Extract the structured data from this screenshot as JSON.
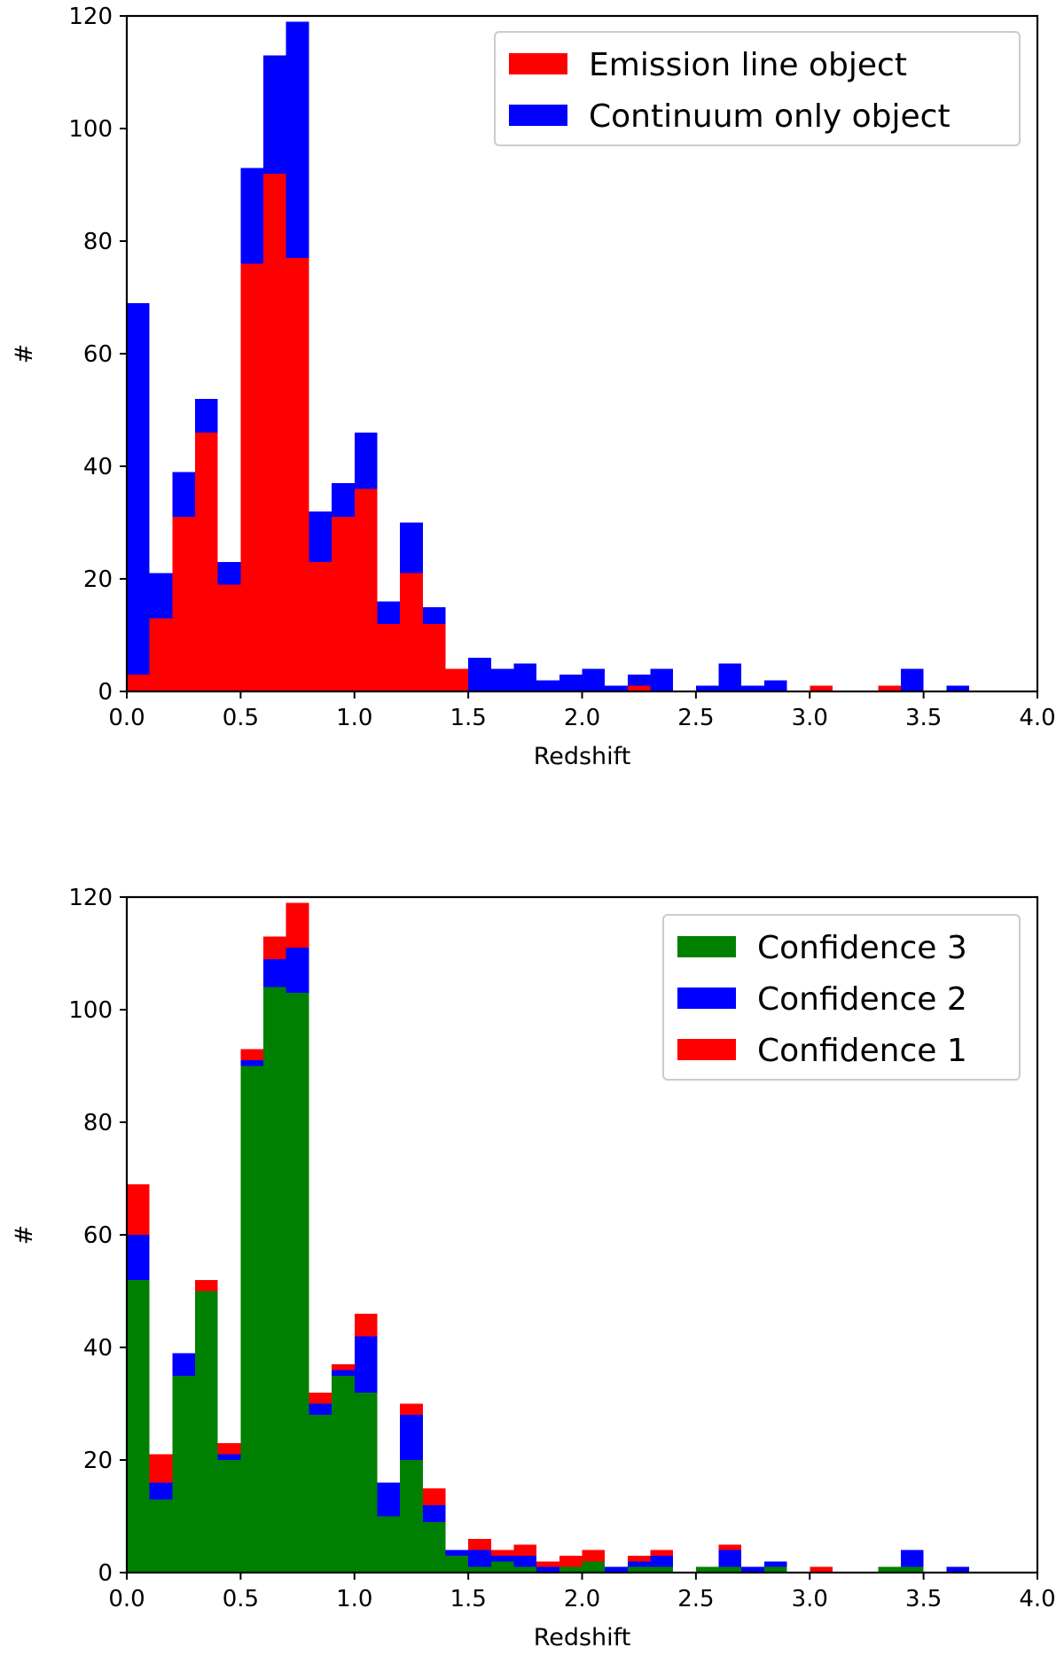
{
  "chart_data": [
    {
      "type": "bar",
      "stacked": true,
      "title": "",
      "xlabel": "Redshift",
      "ylabel": "#",
      "xlim": [
        0.0,
        4.0
      ],
      "ylim": [
        0,
        120
      ],
      "grid": false,
      "legend_position": "top-right",
      "bin_width": 0.1,
      "bin_starts": [
        0.0,
        0.1,
        0.2,
        0.3,
        0.4,
        0.5,
        0.6,
        0.7,
        0.8,
        0.9,
        1.0,
        1.1,
        1.2,
        1.3,
        1.4,
        1.5,
        1.6,
        1.7,
        1.8,
        1.9,
        2.0,
        2.1,
        2.2,
        2.3,
        2.4,
        2.5,
        2.6,
        2.7,
        2.8,
        2.9,
        3.0,
        3.1,
        3.2,
        3.3,
        3.4,
        3.5,
        3.6,
        3.7,
        3.8,
        3.9
      ],
      "x_ticks": [
        "0.0",
        "0.5",
        "1.0",
        "1.5",
        "2.0",
        "2.5",
        "3.0",
        "3.5",
        "4.0"
      ],
      "y_ticks": [
        "0",
        "20",
        "40",
        "60",
        "80",
        "100",
        "120"
      ],
      "series": [
        {
          "name": "Emission line object",
          "color": "#ff0000",
          "values": [
            3,
            13,
            31,
            46,
            19,
            76,
            92,
            77,
            23,
            31,
            36,
            12,
            21,
            12,
            4,
            0,
            0,
            0,
            0,
            0,
            0,
            0,
            1,
            0,
            0,
            0,
            0,
            0,
            0,
            0,
            1,
            0,
            0,
            1,
            0,
            0,
            0,
            0,
            0,
            0
          ]
        },
        {
          "name": "Continuum only object",
          "color": "#0000ff",
          "values": [
            66,
            8,
            8,
            6,
            4,
            17,
            21,
            42,
            9,
            6,
            10,
            4,
            9,
            3,
            0,
            6,
            4,
            5,
            2,
            3,
            4,
            1,
            2,
            4,
            0,
            1,
            5,
            1,
            2,
            0,
            0,
            0,
            0,
            0,
            4,
            0,
            1,
            0,
            0,
            0
          ]
        }
      ]
    },
    {
      "type": "bar",
      "stacked": true,
      "title": "",
      "xlabel": "Redshift",
      "ylabel": "#",
      "xlim": [
        0.0,
        4.0
      ],
      "ylim": [
        0,
        120
      ],
      "grid": false,
      "legend_position": "top-right",
      "bin_width": 0.1,
      "bin_starts": [
        0.0,
        0.1,
        0.2,
        0.3,
        0.4,
        0.5,
        0.6,
        0.7,
        0.8,
        0.9,
        1.0,
        1.1,
        1.2,
        1.3,
        1.4,
        1.5,
        1.6,
        1.7,
        1.8,
        1.9,
        2.0,
        2.1,
        2.2,
        2.3,
        2.4,
        2.5,
        2.6,
        2.7,
        2.8,
        2.9,
        3.0,
        3.1,
        3.2,
        3.3,
        3.4,
        3.5,
        3.6,
        3.7,
        3.8,
        3.9
      ],
      "x_ticks": [
        "0.0",
        "0.5",
        "1.0",
        "1.5",
        "2.0",
        "2.5",
        "3.0",
        "3.5",
        "4.0"
      ],
      "y_ticks": [
        "0",
        "20",
        "40",
        "60",
        "80",
        "100",
        "120"
      ],
      "series": [
        {
          "name": "Confidence 3",
          "color": "#008000",
          "values": [
            52,
            13,
            35,
            50,
            20,
            90,
            104,
            103,
            28,
            35,
            32,
            10,
            20,
            9,
            3,
            1,
            2,
            1,
            0,
            1,
            2,
            0,
            1,
            1,
            0,
            1,
            1,
            0,
            1,
            0,
            0,
            0,
            0,
            1,
            1,
            0,
            0,
            0,
            0,
            0
          ]
        },
        {
          "name": "Confidence 2",
          "color": "#0000ff",
          "values": [
            8,
            3,
            4,
            0,
            1,
            1,
            5,
            8,
            2,
            1,
            10,
            6,
            8,
            3,
            1,
            3,
            1,
            2,
            1,
            0,
            0,
            1,
            1,
            2,
            0,
            0,
            3,
            1,
            1,
            0,
            0,
            0,
            0,
            0,
            3,
            0,
            1,
            0,
            0,
            0
          ]
        },
        {
          "name": "Confidence 1",
          "color": "#ff0000",
          "values": [
            9,
            5,
            0,
            2,
            2,
            2,
            4,
            8,
            2,
            1,
            4,
            0,
            2,
            3,
            0,
            2,
            1,
            2,
            1,
            2,
            2,
            0,
            1,
            1,
            0,
            0,
            1,
            0,
            0,
            0,
            1,
            0,
            0,
            0,
            0,
            0,
            0,
            0,
            0,
            0
          ]
        }
      ]
    }
  ]
}
